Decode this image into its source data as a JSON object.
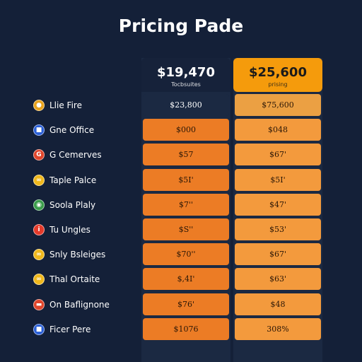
{
  "page": {
    "title": "Pricing Pade"
  },
  "plans": [
    {
      "price": "$19,470",
      "subtitle": "Tocbsuites"
    },
    {
      "price": "$25,600",
      "subtitle": "prising"
    }
  ],
  "rows": [
    {
      "label": "Llie Fire",
      "icon": "sunglasses-icon",
      "icon_color": "#e8a21c",
      "col1": "$23,800",
      "col2": "$75,600"
    },
    {
      "label": "Gne Office",
      "icon": "flag-icon",
      "icon_color": "#2a5fd6",
      "col1": "$000",
      "col2": "$048"
    },
    {
      "label": "G Cemerves",
      "icon": "g-logo-icon",
      "icon_color": "#e0452b",
      "col1": "$57",
      "col2": "$67'"
    },
    {
      "label": "Taple Palce",
      "icon": "glasses-icon",
      "icon_color": "#f0b81c",
      "col1": "$5I'",
      "col2": "$5I'"
    },
    {
      "label": "Soola Plaly",
      "icon": "chrome-icon",
      "icon_color": "#3a9c4a",
      "col1": "$7''",
      "col2": "$47'"
    },
    {
      "label": "Tu Ungles",
      "icon": "info-icon",
      "icon_color": "#e53a2a",
      "col1": "$S''",
      "col2": "$53'"
    },
    {
      "label": "Snly Bsleiges",
      "icon": "glasses-icon",
      "icon_color": "#f0b81c",
      "col1": "$70''",
      "col2": "$67'"
    },
    {
      "label": "Thal Ortaite",
      "icon": "glasses-icon",
      "icon_color": "#f0b81c",
      "col1": "$,4I'",
      "col2": "$63'"
    },
    {
      "label": "On Baflignone",
      "icon": "mask-icon",
      "icon_color": "#e0452b",
      "col1": "$76'",
      "col2": "$48"
    },
    {
      "label": "Ficer Pere",
      "icon": "flag-icon",
      "icon_color": "#2a5fd6",
      "col1": "$1076",
      "col2": "308%"
    }
  ],
  "colors": {
    "background": "#142038",
    "accent": "#f59b0c",
    "cell_orange": "#ec7c25"
  }
}
